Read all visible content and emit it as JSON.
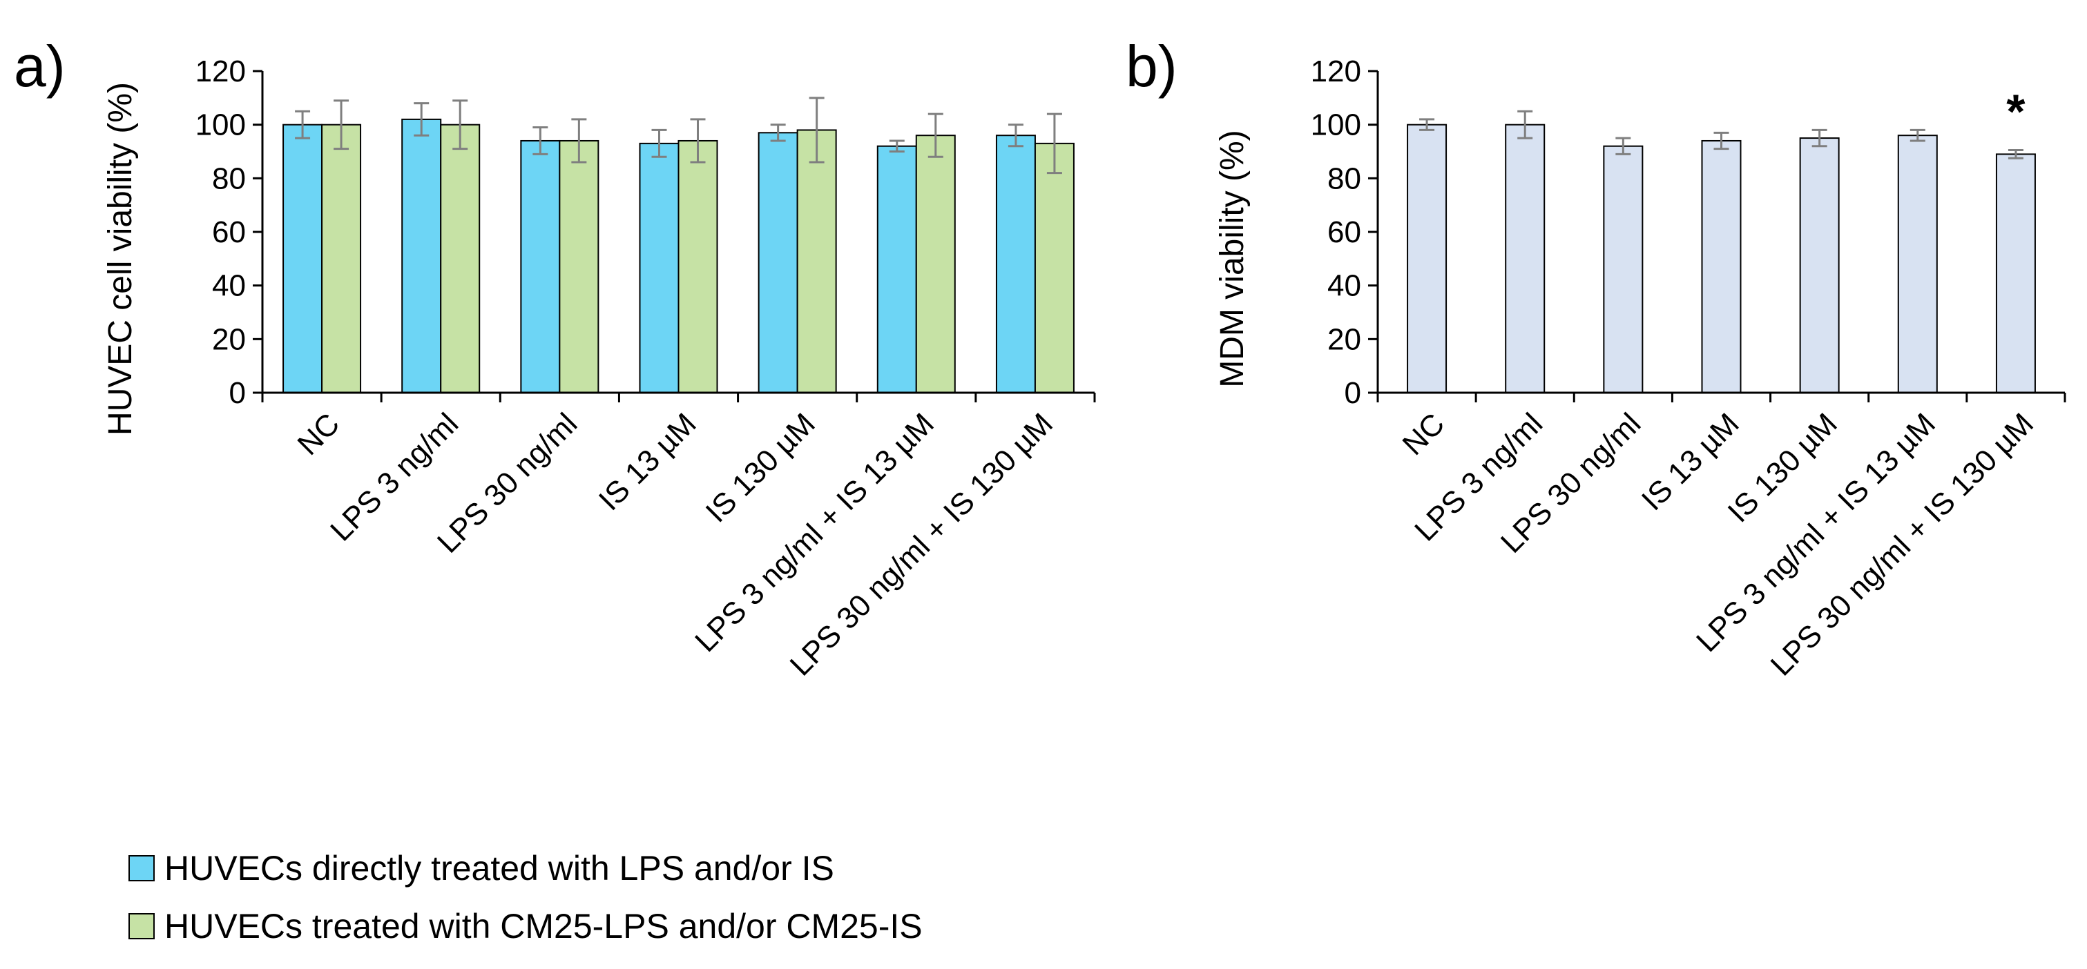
{
  "colors": {
    "series_a1": "#6dd5f5",
    "series_a2": "#c6e2a5",
    "series_b": "#d8e2f2",
    "error_bar": "#7f7f7f"
  },
  "chart_data": [
    {
      "type": "bar",
      "panel_label": "a)",
      "title": "",
      "xlabel": "",
      "ylabel": "HUVEC cell viability (%)",
      "ylim": [
        0,
        120
      ],
      "yticks": [
        "0",
        "20",
        "40",
        "60",
        "80",
        "100",
        "120"
      ],
      "categories": [
        "NC",
        "LPS 3 ng/ml",
        "LPS 30 ng/ml",
        "IS 13 µM",
        "IS 130 µM",
        "LPS 3 ng/ml + IS 13 µM",
        "LPS 30 ng/ml + IS 130 µM"
      ],
      "series": [
        {
          "name": "HUVECs directly treated with LPS and/or IS",
          "values": [
            100,
            102,
            94,
            93,
            97,
            92,
            96
          ],
          "errors": [
            5,
            6,
            5,
            5,
            3,
            2,
            4
          ]
        },
        {
          "name": "HUVECs treated with CM25-LPS and/or CM25-IS",
          "values": [
            100,
            100,
            94,
            94,
            98,
            96,
            93
          ],
          "errors": [
            9,
            9,
            8,
            8,
            12,
            8,
            11
          ]
        }
      ],
      "legend": "bottom-left"
    },
    {
      "type": "bar",
      "panel_label": "b)",
      "title": "",
      "xlabel": "",
      "ylabel": "MDM viability (%)",
      "ylim": [
        0,
        120
      ],
      "yticks": [
        "0",
        "20",
        "40",
        "60",
        "80",
        "100",
        "120"
      ],
      "categories": [
        "NC",
        "LPS 3 ng/ml",
        "LPS 30 ng/ml",
        "IS 13 µM",
        "IS 130 µM",
        "LPS 3 ng/ml + IS 13 µM",
        "LPS 30 ng/ml + IS 130 µM"
      ],
      "series": [
        {
          "name": "MDM",
          "values": [
            100,
            100,
            92,
            94,
            95,
            96,
            89
          ],
          "errors": [
            2,
            5,
            3,
            3,
            3,
            2,
            1.5
          ]
        }
      ],
      "annotations": [
        {
          "category_index": 6,
          "text": "*"
        }
      ]
    }
  ]
}
